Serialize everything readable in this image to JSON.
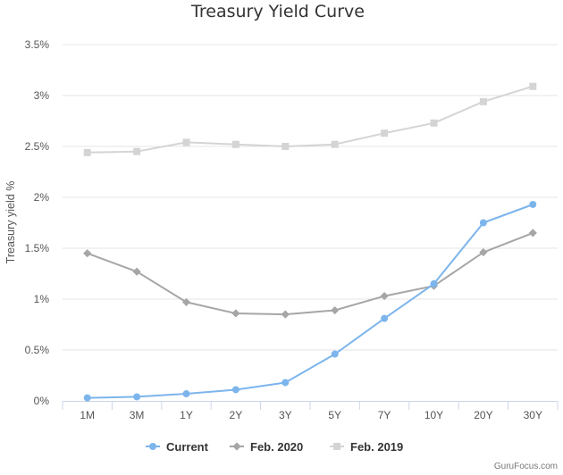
{
  "chart_data": {
    "type": "line",
    "title": "Treasury Yield Curve",
    "xlabel": "",
    "ylabel": "Treasury yield %",
    "categories": [
      "1M",
      "3M",
      "1Y",
      "2Y",
      "3Y",
      "5Y",
      "7Y",
      "10Y",
      "20Y",
      "30Y"
    ],
    "y_ticks": [
      "0%",
      "0.5%",
      "1%",
      "1.5%",
      "2%",
      "2.5%",
      "3%",
      "3.5%"
    ],
    "ylim": [
      0,
      3.5
    ],
    "grid": true,
    "legend_position": "bottom",
    "series": [
      {
        "name": "Current",
        "color": "#7cb5ec",
        "marker": "circle",
        "values": [
          0.03,
          0.04,
          0.07,
          0.11,
          0.18,
          0.46,
          0.81,
          1.15,
          1.75,
          1.93
        ]
      },
      {
        "name": "Feb. 2020",
        "color": "#a6a6a6",
        "marker": "diamond",
        "values": [
          1.45,
          1.27,
          0.97,
          0.86,
          0.85,
          0.89,
          1.03,
          1.13,
          1.46,
          1.65
        ]
      },
      {
        "name": "Feb. 2019",
        "color": "#d4d4d4",
        "marker": "square",
        "values": [
          2.44,
          2.45,
          2.54,
          2.52,
          2.5,
          2.52,
          2.63,
          2.73,
          2.94,
          3.09
        ]
      }
    ]
  },
  "credit": "GuruFocus.com"
}
